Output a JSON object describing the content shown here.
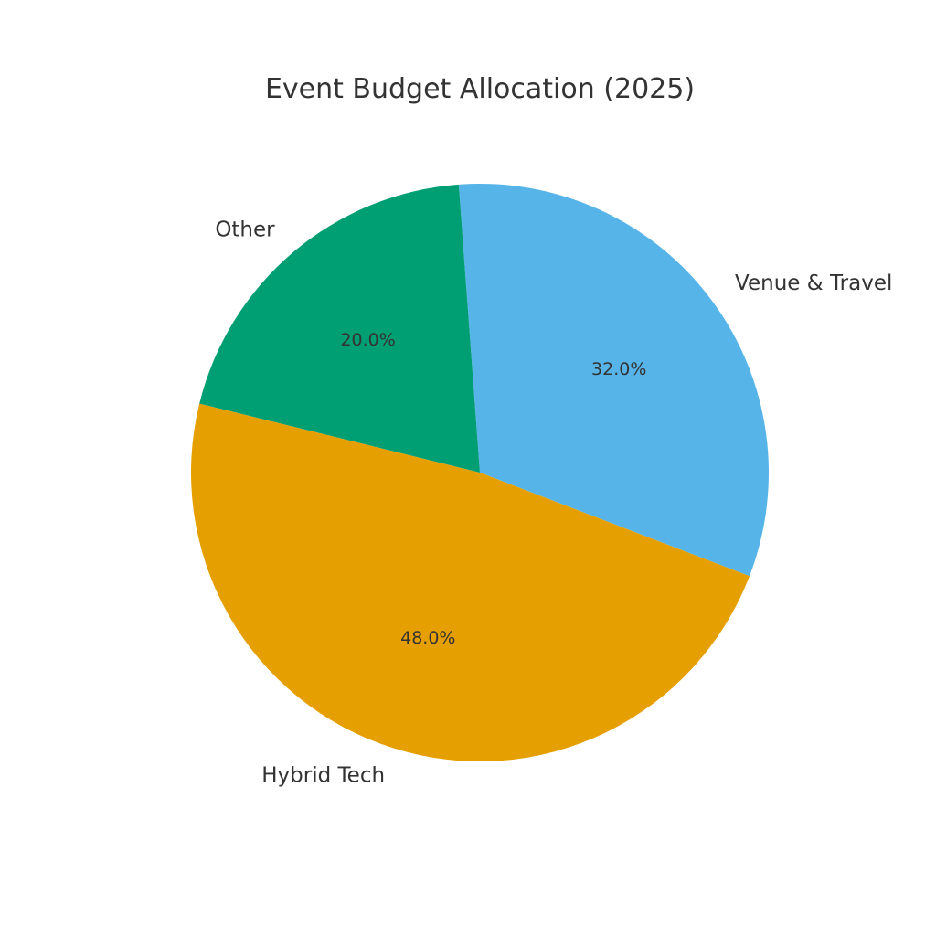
{
  "chart_data": {
    "type": "pie",
    "title": "Event Budget Allocation (2025)",
    "categories": [
      "Venue & Travel",
      "Other",
      "Hybrid Tech"
    ],
    "values": [
      32.0,
      20.0,
      48.0
    ],
    "labels_pct": [
      "32.0%",
      "20.0%",
      "48.0%"
    ],
    "colors": [
      "#56B4E9",
      "#009E73",
      "#E69F00"
    ],
    "start_angle_deg": -21.0,
    "direction": "counterclockwise",
    "legend": "none"
  }
}
